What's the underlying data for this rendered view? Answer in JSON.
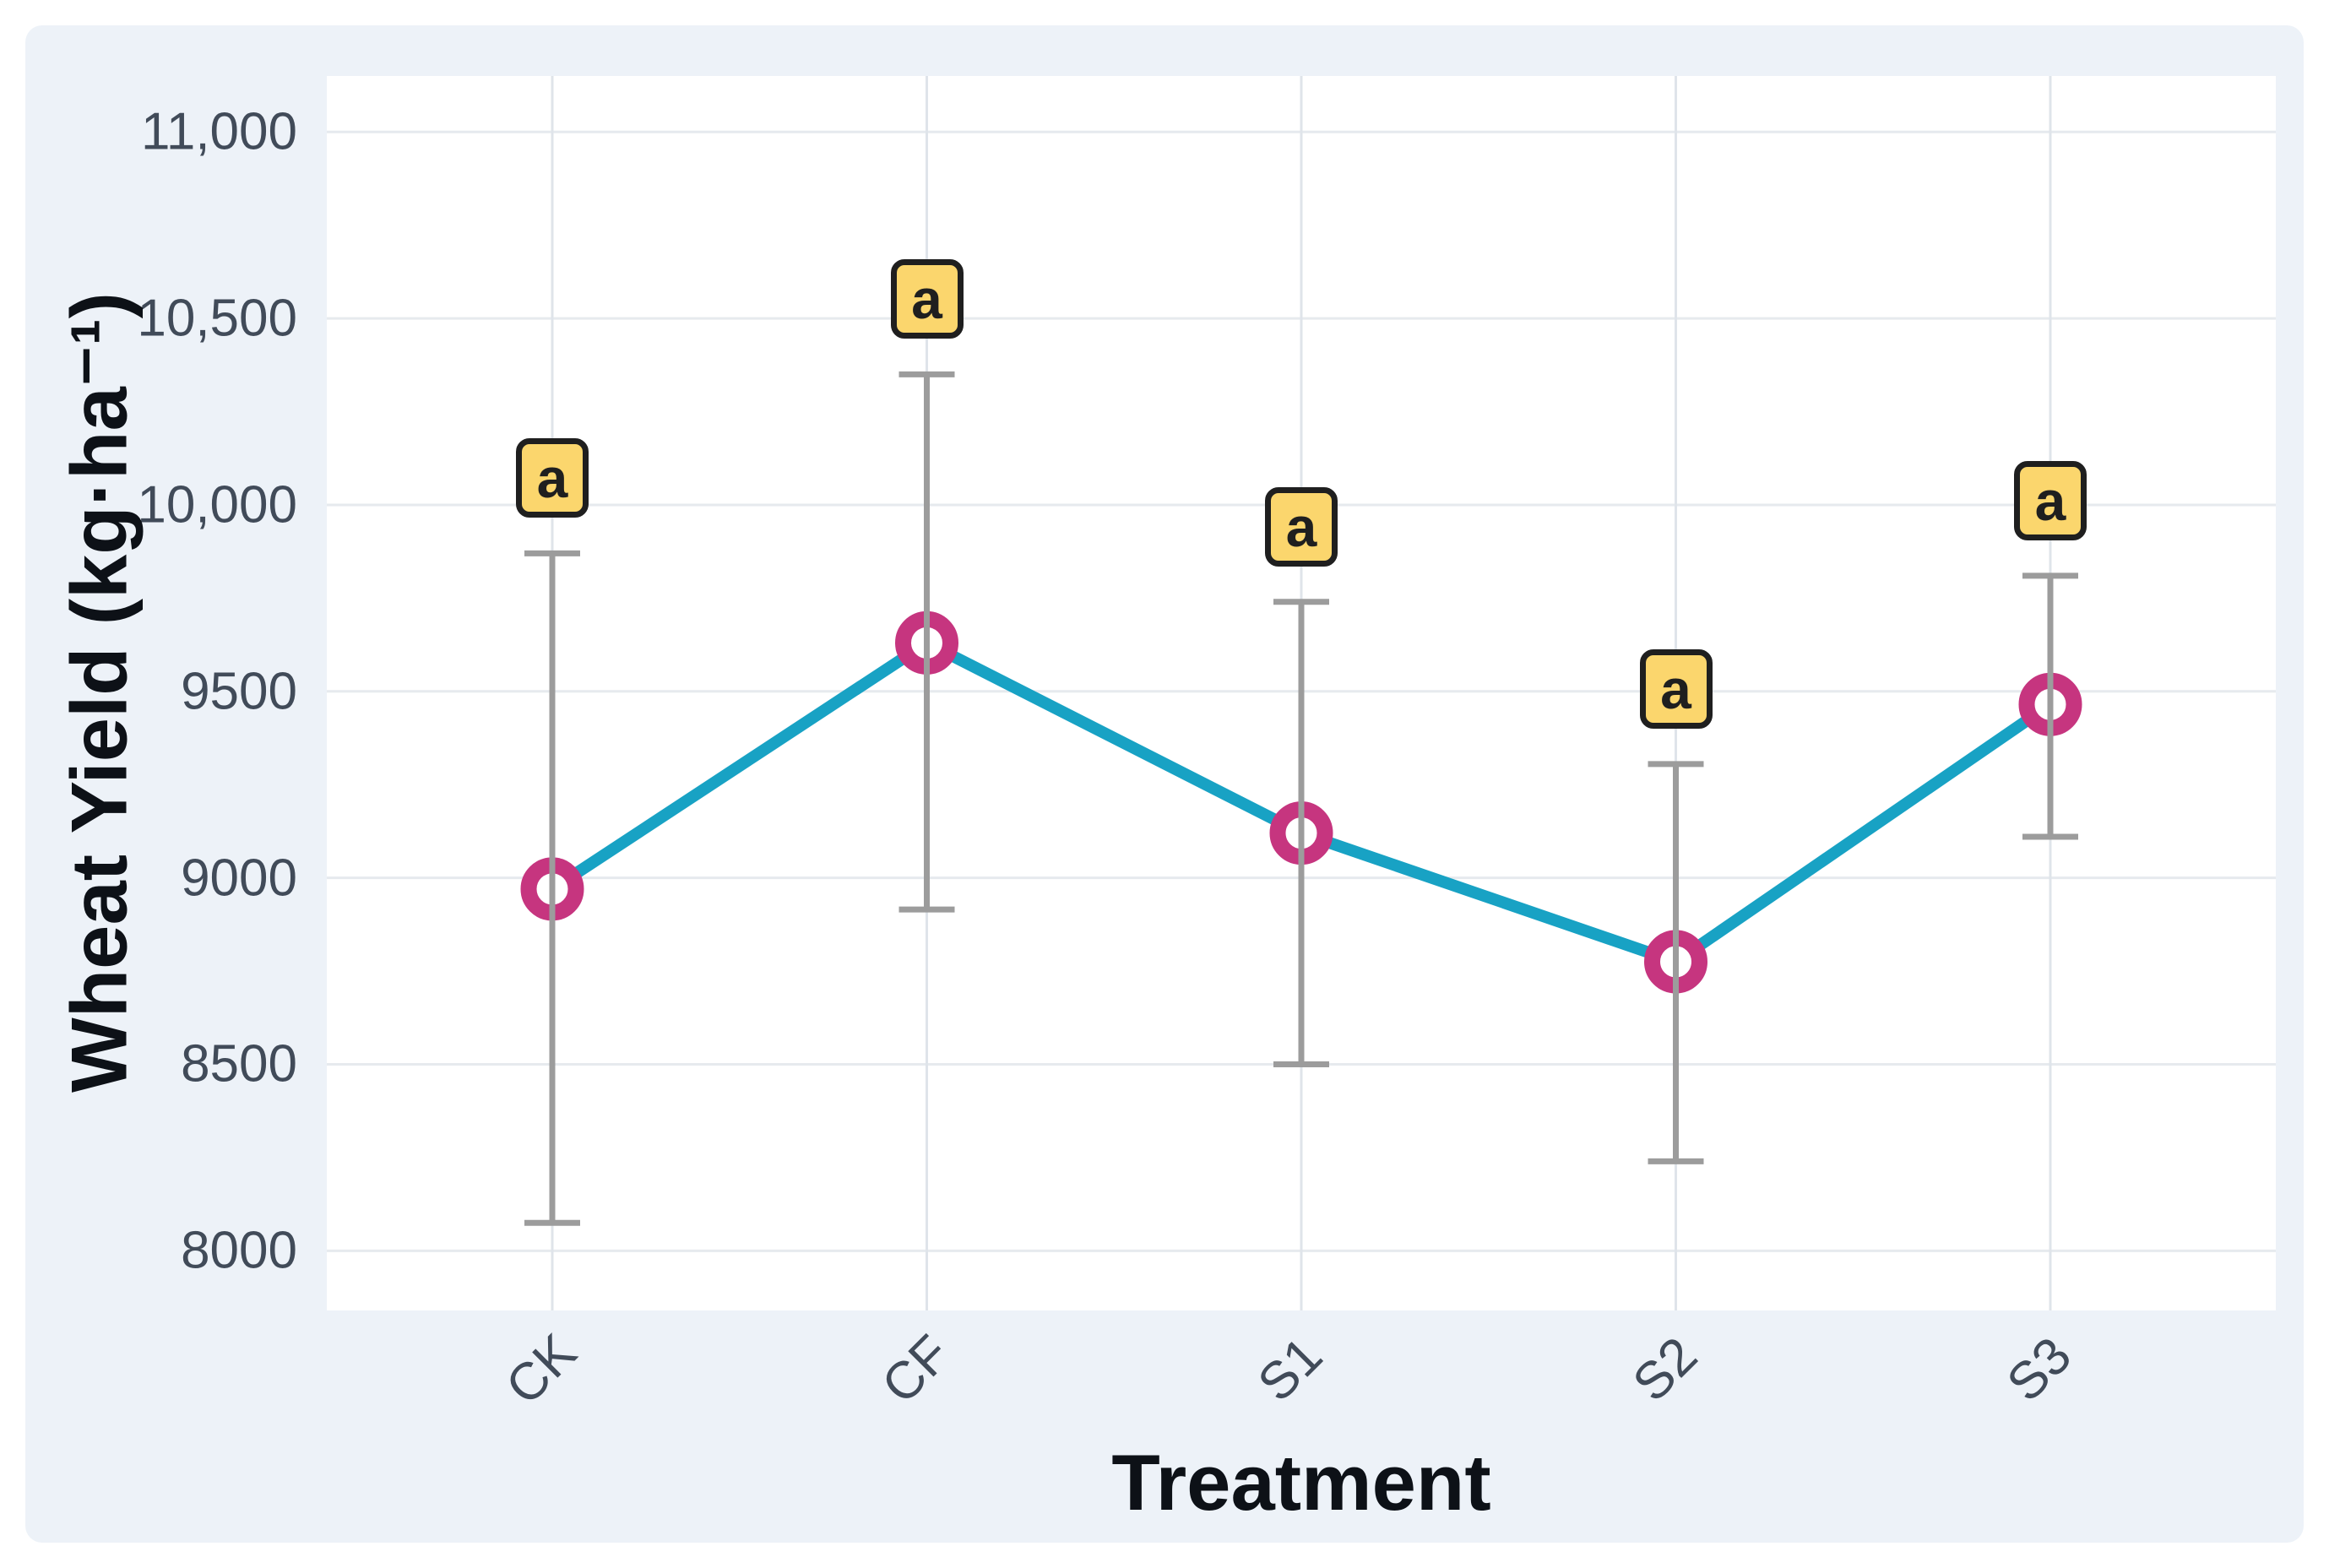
{
  "figure": {
    "page_background": "#ffffff",
    "card_background": "#edf2f8",
    "plot_background": "#ffffff"
  },
  "chart_data": {
    "type": "line",
    "title": "",
    "xlabel": "Treatment",
    "ylabel": "Wheat Yield (kg·ha⁻¹)",
    "categories": [
      "CK",
      "CF",
      "S1",
      "S2",
      "S3"
    ],
    "series": [
      {
        "name": "Wheat Yield",
        "values": [
          8970,
          9630,
          9120,
          8775,
          9465
        ],
        "error_upper": [
          9870,
          10350,
          9740,
          9305,
          9810
        ],
        "error_lower": [
          8075,
          8915,
          8500,
          8240,
          9110
        ]
      }
    ],
    "sig_letters": [
      "a",
      "a",
      "a",
      "a",
      "a"
    ],
    "yticks": [
      {
        "value": 8000,
        "label": "8000"
      },
      {
        "value": 8500,
        "label": "8500"
      },
      {
        "value": 9000,
        "label": "9000"
      },
      {
        "value": 9500,
        "label": "9500"
      },
      {
        "value": 10000,
        "label": "10,000"
      },
      {
        "value": 10500,
        "label": "10,500"
      },
      {
        "value": 11000,
        "label": "11,000"
      }
    ],
    "ylim": [
      7840,
      11150
    ],
    "grid": true,
    "legend_position": "none",
    "colors": {
      "line": "#18a2c4",
      "marker_ring": "#c6357f",
      "marker_fill": "#ffffff",
      "error_bar": "#9c9c9c",
      "badge_fill": "#fbd66d",
      "badge_border": "#1f1f1f",
      "badge_text": "#1f1f1f",
      "grid_horizontal": "#e6eaee",
      "grid_vertical": "#dfe4ea",
      "tick_text": "#414b59",
      "title_text": "#0d1117"
    }
  }
}
